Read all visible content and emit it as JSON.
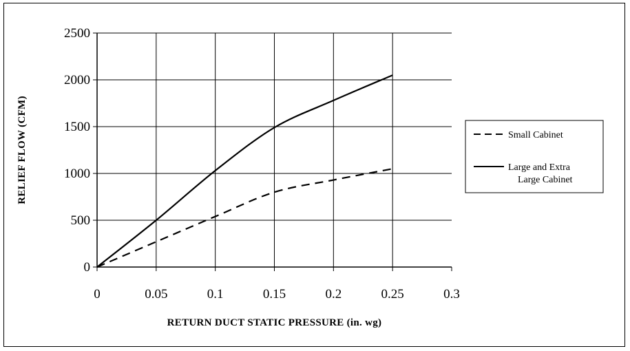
{
  "chart_data": {
    "type": "line",
    "title": "",
    "xlabel": "RETURN DUCT STATIC PRESSURE (in. wg)",
    "ylabel": "RELIEF FLOW (CFM)",
    "xlim": [
      0,
      0.3
    ],
    "ylim": [
      0,
      2500
    ],
    "x_ticks": [
      "0",
      "0.05",
      "0.1",
      "0.15",
      "0.2",
      "0.25",
      "0.3"
    ],
    "y_ticks": [
      "0",
      "500",
      "1000",
      "1500",
      "2000",
      "2500"
    ],
    "grid": true,
    "legend_position": "right",
    "series": [
      {
        "name": "Small Cabinet",
        "style": "dashed",
        "color": "#000000",
        "x": [
          0,
          0.05,
          0.1,
          0.15,
          0.2,
          0.25
        ],
        "y": [
          0,
          270,
          540,
          800,
          930,
          1050
        ]
      },
      {
        "name": "Large and Extra Large Cabinet",
        "legend_lines": [
          "Large and Extra",
          "Large Cabinet"
        ],
        "style": "solid",
        "color": "#000000",
        "x": [
          0,
          0.05,
          0.1,
          0.15,
          0.2,
          0.25
        ],
        "y": [
          0,
          500,
          1030,
          1490,
          1780,
          2050
        ]
      }
    ]
  }
}
